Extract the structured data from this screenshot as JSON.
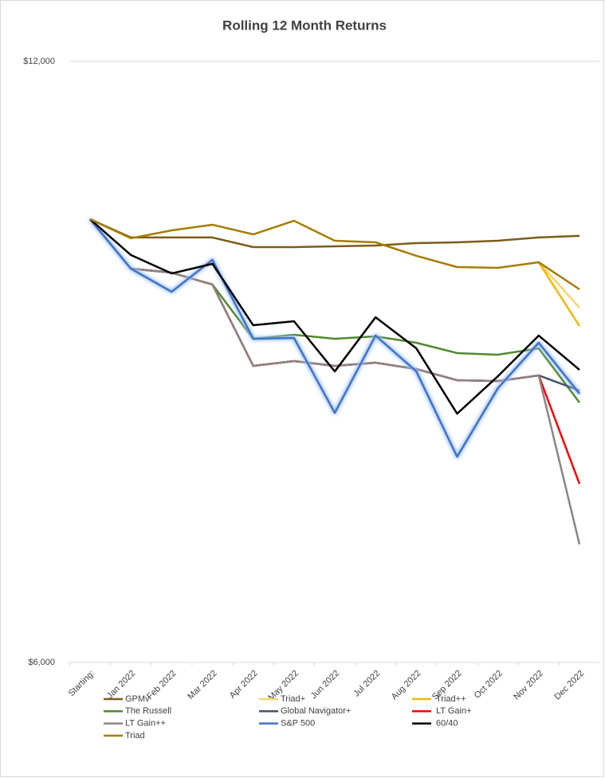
{
  "chart_data": {
    "type": "line",
    "title": "Rolling 12 Month Returns",
    "categories": [
      "Starting:",
      "Jan 2022",
      "Feb 2022",
      "Mar 2022",
      "Apr 2022",
      "May 2022",
      "Jun 2022",
      "Jul 2022",
      "Aug 2022",
      "Sep 2022",
      "Oct 2022",
      "Nov 2022",
      "Dec 2022"
    ],
    "ylim": [
      6000,
      12000
    ],
    "yticks": [
      {
        "value": 6000,
        "label": "$6,000"
      },
      {
        "value": 12000,
        "label": "$12,000"
      }
    ],
    "grid": true,
    "legend": "bottom",
    "series": [
      {
        "name": "GPMv",
        "color": "#7b5c1a",
        "values": [
          10425,
          10242,
          10242,
          10242,
          10146,
          10146,
          10154,
          10162,
          10186,
          10194,
          10210,
          10242,
          10258
        ]
      },
      {
        "name": "Triad+",
        "color": "#f5d56b",
        "values": [
          null,
          null,
          null,
          null,
          null,
          null,
          null,
          null,
          null,
          null,
          null,
          9995,
          9541
        ]
      },
      {
        "name": "Triad++",
        "color": "#f2b705",
        "values": [
          null,
          null,
          null,
          null,
          null,
          null,
          null,
          null,
          null,
          null,
          null,
          9995,
          9358
        ]
      },
      {
        "name": "The Russell",
        "color": "#4e8a2e",
        "values": [
          10425,
          9931,
          9891,
          9772,
          9231,
          9271,
          9231,
          9255,
          9191,
          9088,
          9072,
          9135,
          8594
        ]
      },
      {
        "name": "Global Navigator+",
        "color": "#44546a",
        "values": [
          10425,
          9931,
          9891,
          9772,
          8960,
          9008,
          8960,
          8992,
          8929,
          8817,
          8809,
          8865,
          8714
        ]
      },
      {
        "name": "LT Gain+",
        "color": "#ff0000",
        "values": [
          10425,
          9931,
          9891,
          9772,
          8960,
          9008,
          8960,
          8992,
          8929,
          8817,
          8809,
          8865,
          7783
        ]
      },
      {
        "name": "LT Gain++",
        "color": "#8c8484",
        "values": [
          10425,
          9931,
          9891,
          9772,
          8960,
          9008,
          8960,
          8992,
          8929,
          8817,
          8809,
          8865,
          7178
        ]
      },
      {
        "name": "S&P 500",
        "color": "#4472c4",
        "values": [
          10425,
          9931,
          9700,
          10019,
          9231,
          9239,
          8491,
          9263,
          8905,
          8053,
          8738,
          9191,
          8682
        ]
      },
      {
        "name": "60/40",
        "color": "#000000",
        "values": [
          10425,
          10067,
          9883,
          9979,
          9366,
          9406,
          8905,
          9446,
          9135,
          8483,
          8857,
          9263,
          8921
        ]
      },
      {
        "name": "Triad",
        "color": "#a67c00",
        "values": [
          10425,
          10234,
          10313,
          10369,
          10273,
          10409,
          10210,
          10194,
          10059,
          9947,
          9939,
          9995,
          9724
        ]
      }
    ]
  }
}
